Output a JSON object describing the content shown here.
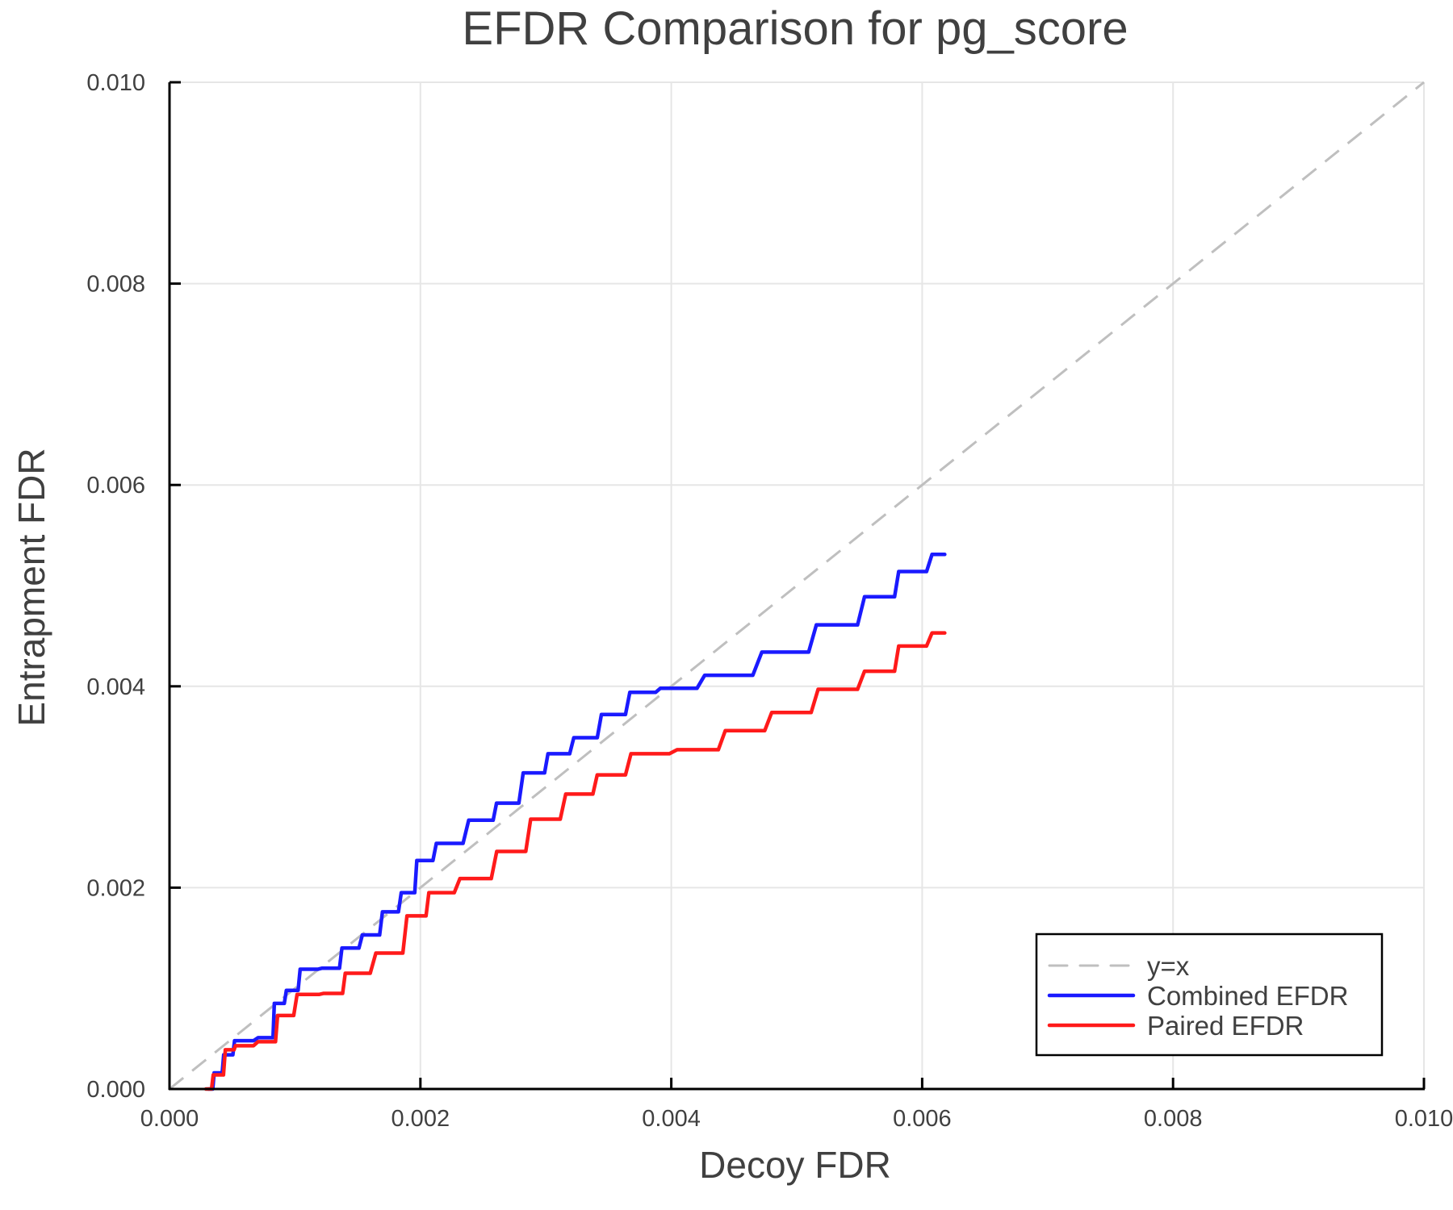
{
  "chart_data": {
    "type": "line",
    "title": "EFDR Comparison for pg_score",
    "xlabel": "Decoy FDR",
    "ylabel": "Entrapment FDR",
    "xlim": [
      0.0,
      0.01
    ],
    "ylim": [
      0.0,
      0.01
    ],
    "xticks": [
      "0.000",
      "0.002",
      "0.004",
      "0.006",
      "0.008",
      "0.010"
    ],
    "yticks": [
      "0.000",
      "0.002",
      "0.004",
      "0.006",
      "0.008",
      "0.010"
    ],
    "grid": true,
    "legend_position": "bottom-right",
    "series": [
      {
        "name": "y=x",
        "color": "#bfbfbf",
        "style": "dashed",
        "x": [
          0.0,
          0.01
        ],
        "y": [
          0.0,
          0.01
        ]
      },
      {
        "name": "Combined EFDR",
        "color": "#1a1aff",
        "style": "solid",
        "x": [
          0.00031,
          0.00038,
          0.00046,
          0.00055,
          0.00079,
          0.00086,
          0.00097,
          0.00108,
          0.00129,
          0.00142,
          0.0016,
          0.00175,
          0.0019,
          0.00201,
          0.00219,
          0.00249,
          0.00267,
          0.0029,
          0.00308,
          0.0033,
          0.00352,
          0.00375,
          0.004,
          0.00441,
          0.00489,
          0.0053,
          0.00567,
          0.00589,
          0.00618
        ],
        "y": [
          0.0,
          0.00016,
          0.00034,
          0.00048,
          0.00051,
          0.00085,
          0.00098,
          0.00119,
          0.0012,
          0.0014,
          0.00153,
          0.00176,
          0.00195,
          0.00227,
          0.00244,
          0.00267,
          0.00284,
          0.00314,
          0.00333,
          0.00349,
          0.00372,
          0.00394,
          0.00398,
          0.00411,
          0.00434,
          0.00461,
          0.00489,
          0.00514,
          0.00531
        ]
      },
      {
        "name": "Paired EFDR",
        "color": "#ff1a1a",
        "style": "solid",
        "x": [
          0.00029,
          0.00038,
          0.00048,
          0.00055,
          0.00079,
          0.0009,
          0.00108,
          0.00131,
          0.00145,
          0.00175,
          0.00197,
          0.00212,
          0.00242,
          0.00271,
          0.00297,
          0.00326,
          0.00349,
          0.00378,
          0.00419,
          0.00456,
          0.00493,
          0.0053,
          0.00567,
          0.00589,
          0.00618
        ],
        "y": [
          0.0,
          0.00014,
          0.00039,
          0.00043,
          0.00047,
          0.00073,
          0.00094,
          0.00095,
          0.00115,
          0.00135,
          0.00172,
          0.00195,
          0.00209,
          0.00236,
          0.00268,
          0.00293,
          0.00312,
          0.00333,
          0.00337,
          0.00356,
          0.00374,
          0.00397,
          0.00415,
          0.0044,
          0.00453
        ]
      }
    ]
  },
  "legend": {
    "items": [
      {
        "label": "y=x",
        "color": "#bfbfbf",
        "style": "dashed"
      },
      {
        "label": "Combined EFDR",
        "color": "#1a1aff",
        "style": "solid"
      },
      {
        "label": "Paired EFDR",
        "color": "#ff1a1a",
        "style": "solid"
      }
    ]
  }
}
